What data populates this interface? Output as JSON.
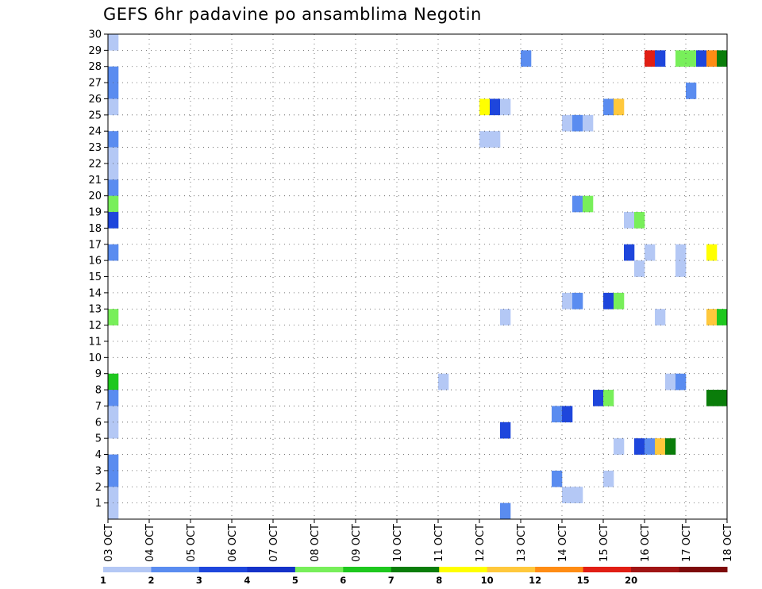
{
  "chart_data": {
    "type": "heatmap",
    "title": "GEFS 6hr padavine po ansamblima Negotin",
    "xlabel": "",
    "ylabel": "",
    "x_tick_labels": [
      "03 OCT",
      "04 OCT",
      "05 OCT",
      "06 OCT",
      "07 OCT",
      "08 OCT",
      "09 OCT",
      "10 OCT",
      "11 OCT",
      "12 OCT",
      "13 OCT",
      "14 OCT",
      "15 OCT",
      "16 OCT",
      "17 OCT",
      "18 OCT"
    ],
    "y_tick_labels": [
      "1",
      "2",
      "3",
      "4",
      "5",
      "6",
      "7",
      "8",
      "9",
      "10",
      "11",
      "12",
      "13",
      "14",
      "15",
      "16",
      "17",
      "18",
      "19",
      "20",
      "21",
      "22",
      "23",
      "24",
      "25",
      "26",
      "27",
      "28",
      "29",
      "30"
    ],
    "x_range_days": [
      0,
      15
    ],
    "y_range": [
      0,
      30
    ],
    "grid": true,
    "legend": {
      "placement": "bottom",
      "levels": [
        "1",
        "2",
        "3",
        "4",
        "5",
        "6",
        "7",
        "8",
        "10",
        "12",
        "15",
        "20"
      ],
      "colors": [
        "#b4c8f5",
        "#5a8cf0",
        "#1e46dc",
        "#1432c8",
        "#78ef5a",
        "#1ec81e",
        "#0a7d0a",
        "#ffff00",
        "#ffc83c",
        "#ff8c14",
        "#e11e14",
        "#a01414",
        "#7d0a0a"
      ]
    },
    "cells": [
      {
        "m": 30,
        "t": 0,
        "v": 1
      },
      {
        "m": 28,
        "t": 0,
        "v": 2
      },
      {
        "m": 27,
        "t": 0,
        "v": 2
      },
      {
        "m": 26,
        "t": 0,
        "v": 1
      },
      {
        "m": 24,
        "t": 0,
        "v": 2
      },
      {
        "m": 23,
        "t": 0,
        "v": 1
      },
      {
        "m": 22,
        "t": 0,
        "v": 1
      },
      {
        "m": 21,
        "t": 0,
        "v": 2
      },
      {
        "m": 20,
        "t": 0,
        "v": 5
      },
      {
        "m": 19,
        "t": 0,
        "v": 3
      },
      {
        "m": 17,
        "t": 0,
        "v": 2
      },
      {
        "m": 13,
        "t": 0,
        "v": 5
      },
      {
        "m": 9,
        "t": 0,
        "v": 6
      },
      {
        "m": 8,
        "t": 0,
        "v": 2
      },
      {
        "m": 7,
        "t": 0,
        "v": 1
      },
      {
        "m": 6,
        "t": 0,
        "v": 1
      },
      {
        "m": 4,
        "t": 0,
        "v": 2
      },
      {
        "m": 3,
        "t": 0,
        "v": 2
      },
      {
        "m": 2,
        "t": 0,
        "v": 1
      },
      {
        "m": 1,
        "t": 0,
        "v": 1
      },
      {
        "m": 29,
        "t": 40,
        "v": 2
      },
      {
        "m": 29,
        "t": 52,
        "v": 15
      },
      {
        "m": 29,
        "t": 53,
        "v": 3
      },
      {
        "m": 29,
        "t": 55,
        "v": 5
      },
      {
        "m": 29,
        "t": 56,
        "v": 5
      },
      {
        "m": 29,
        "t": 57,
        "v": 3
      },
      {
        "m": 29,
        "t": 58,
        "v": 12
      },
      {
        "m": 29,
        "t": 59,
        "v": 7
      },
      {
        "m": 27,
        "t": 56,
        "v": 2
      },
      {
        "m": 26,
        "t": 36,
        "v": 8
      },
      {
        "m": 26,
        "t": 37,
        "v": 3
      },
      {
        "m": 26,
        "t": 38,
        "v": 1
      },
      {
        "m": 26,
        "t": 48,
        "v": 2
      },
      {
        "m": 26,
        "t": 49,
        "v": 10
      },
      {
        "m": 25,
        "t": 44,
        "v": 1
      },
      {
        "m": 25,
        "t": 45,
        "v": 2
      },
      {
        "m": 25,
        "t": 46,
        "v": 1
      },
      {
        "m": 24,
        "t": 36,
        "v": 1
      },
      {
        "m": 24,
        "t": 37,
        "v": 1
      },
      {
        "m": 20,
        "t": 45,
        "v": 2
      },
      {
        "m": 20,
        "t": 46,
        "v": 5
      },
      {
        "m": 19,
        "t": 50,
        "v": 1
      },
      {
        "m": 19,
        "t": 51,
        "v": 5
      },
      {
        "m": 17,
        "t": 50,
        "v": 3
      },
      {
        "m": 17,
        "t": 52,
        "v": 1
      },
      {
        "m": 17,
        "t": 55,
        "v": 1
      },
      {
        "m": 17,
        "t": 58,
        "v": 8
      },
      {
        "m": 16,
        "t": 51,
        "v": 1
      },
      {
        "m": 16,
        "t": 55,
        "v": 1
      },
      {
        "m": 14,
        "t": 44,
        "v": 1
      },
      {
        "m": 14,
        "t": 45,
        "v": 2
      },
      {
        "m": 14,
        "t": 48,
        "v": 3
      },
      {
        "m": 14,
        "t": 49,
        "v": 5
      },
      {
        "m": 13,
        "t": 38,
        "v": 1
      },
      {
        "m": 13,
        "t": 53,
        "v": 1
      },
      {
        "m": 13,
        "t": 58,
        "v": 10
      },
      {
        "m": 13,
        "t": 59,
        "v": 6
      },
      {
        "m": 9,
        "t": 32,
        "v": 1
      },
      {
        "m": 9,
        "t": 54,
        "v": 1
      },
      {
        "m": 9,
        "t": 55,
        "v": 2
      },
      {
        "m": 8,
        "t": 47,
        "v": 3
      },
      {
        "m": 8,
        "t": 48,
        "v": 5
      },
      {
        "m": 8,
        "t": 58,
        "v": 7
      },
      {
        "m": 8,
        "t": 59,
        "v": 7
      },
      {
        "m": 7,
        "t": 43,
        "v": 2
      },
      {
        "m": 7,
        "t": 44,
        "v": 3
      },
      {
        "m": 6,
        "t": 38,
        "v": 3
      },
      {
        "m": 5,
        "t": 49,
        "v": 1
      },
      {
        "m": 5,
        "t": 51,
        "v": 3
      },
      {
        "m": 5,
        "t": 52,
        "v": 2
      },
      {
        "m": 5,
        "t": 53,
        "v": 10
      },
      {
        "m": 5,
        "t": 54,
        "v": 7
      },
      {
        "m": 3,
        "t": 43,
        "v": 2
      },
      {
        "m": 3,
        "t": 48,
        "v": 1
      },
      {
        "m": 2,
        "t": 44,
        "v": 1
      },
      {
        "m": 2,
        "t": 45,
        "v": 1
      },
      {
        "m": 1,
        "t": 38,
        "v": 2
      }
    ]
  }
}
